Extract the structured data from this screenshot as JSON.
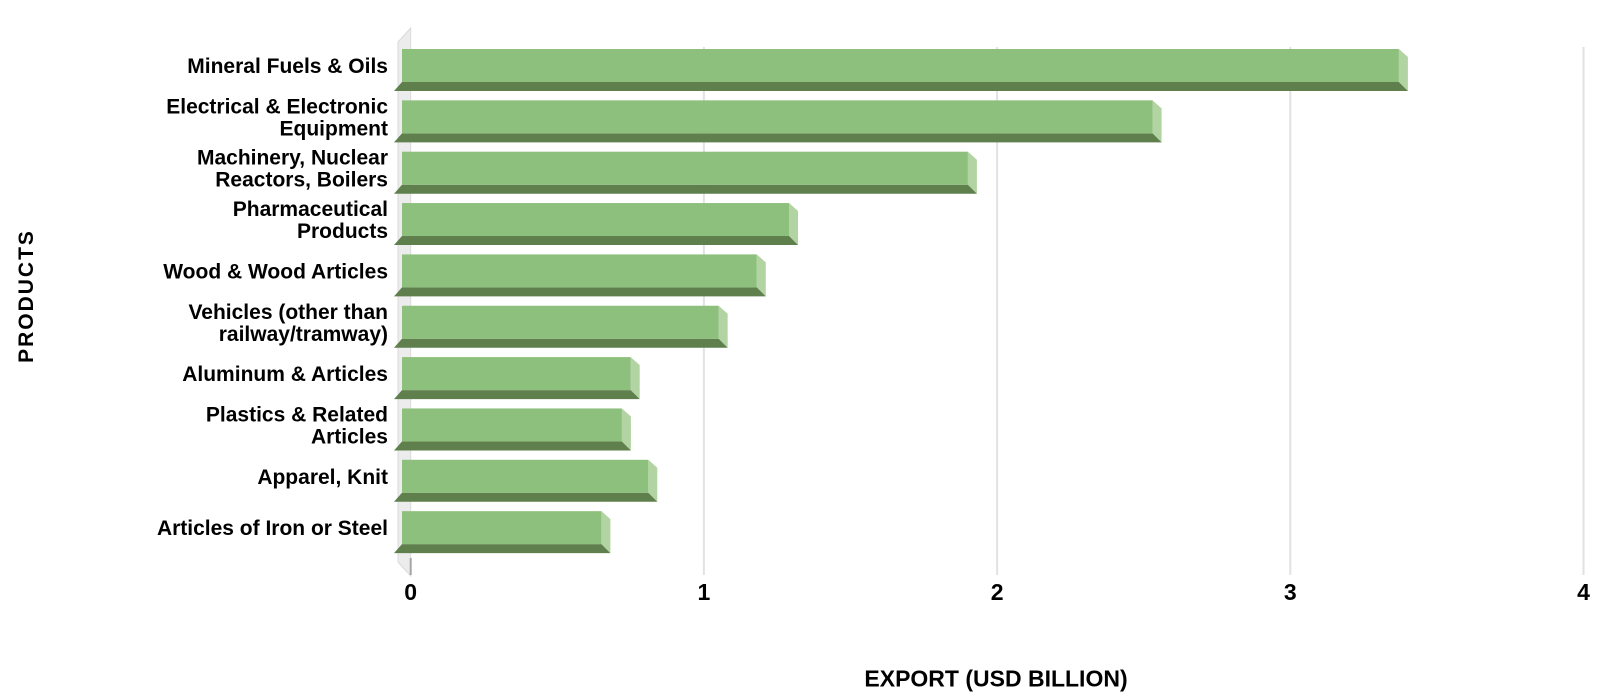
{
  "chart_data": {
    "type": "bar",
    "orientation": "horizontal",
    "style": "3d-bevel",
    "title": "",
    "xlabel": "EXPORT (USD BILLION)",
    "ylabel": "PRODUCTS",
    "xlim": [
      0,
      4
    ],
    "x_ticks": [
      0,
      1,
      2,
      3,
      4
    ],
    "grid": true,
    "legend": false,
    "categories": [
      "Mineral Fuels & Oils",
      "Electrical & Electronic Equipment",
      "Machinery, Nuclear Reactors, Boilers",
      "Pharmaceutical Products",
      "Wood & Wood Articles",
      "Vehicles (other than railway/tramway)",
      "Aluminum & Articles",
      "Plastics & Related Articles",
      "Apparel, Knit",
      "Articles of Iron or Steel"
    ],
    "categories_wrapped": [
      [
        "Mineral Fuels & Oils"
      ],
      [
        "Electrical & Electronic",
        "Equipment"
      ],
      [
        "Machinery, Nuclear",
        "Reactors, Boilers"
      ],
      [
        "Pharmaceutical",
        "Products"
      ],
      [
        "Wood & Wood Articles"
      ],
      [
        "Vehicles (other than",
        "railway/tramway)"
      ],
      [
        "Aluminum & Articles"
      ],
      [
        "Plastics & Related",
        "Articles"
      ],
      [
        "Apparel, Knit"
      ],
      [
        "Articles of Iron or Steel"
      ]
    ],
    "values": [
      3.4,
      2.56,
      1.93,
      1.32,
      1.21,
      1.08,
      0.78,
      0.75,
      0.84,
      0.68
    ],
    "colors": {
      "bar_face": "#8DC07C",
      "bar_bevel": "#5F7F4D",
      "bar_side": "#B2D3A2",
      "wall": "#ECECEC",
      "wall_edge": "#DADADA",
      "gridline": "#E2E2E2",
      "tick": "#A6A6A6",
      "text": "#000000",
      "background": "#FFFFFF"
    }
  }
}
